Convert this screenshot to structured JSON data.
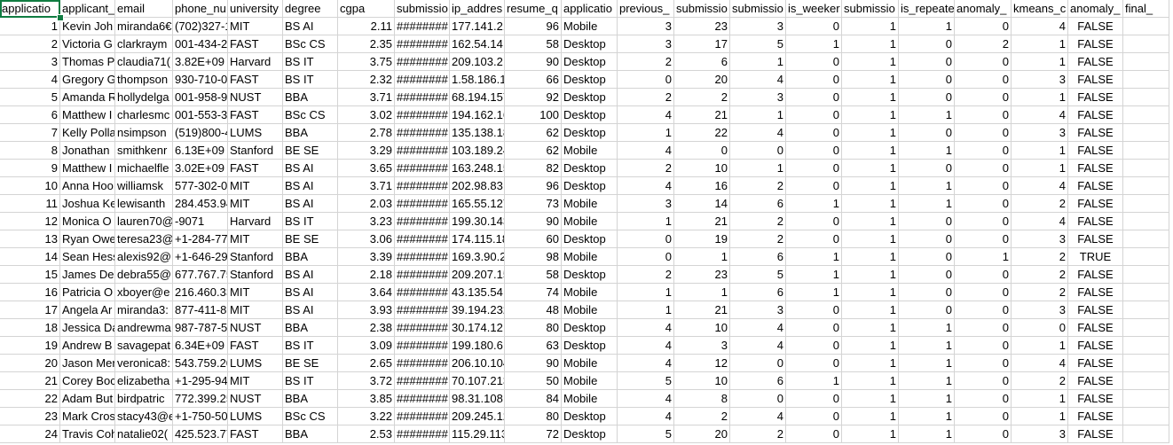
{
  "sheet": {
    "selected_cell": "applicatio",
    "columns": [
      {
        "header": "applicatio",
        "align": "num"
      },
      {
        "header": "applicant_",
        "align": "text"
      },
      {
        "header": "email",
        "align": "text"
      },
      {
        "header": "phone_nu",
        "align": "text"
      },
      {
        "header": "university",
        "align": "text"
      },
      {
        "header": "degree",
        "align": "text"
      },
      {
        "header": "cgpa",
        "align": "num"
      },
      {
        "header": "submissio",
        "align": "text"
      },
      {
        "header": "ip_addres",
        "align": "text"
      },
      {
        "header": "resume_q",
        "align": "num"
      },
      {
        "header": "applicatio",
        "align": "text"
      },
      {
        "header": "previous_",
        "align": "num"
      },
      {
        "header": "submissio",
        "align": "num"
      },
      {
        "header": "submissio",
        "align": "num"
      },
      {
        "header": "is_weeker",
        "align": "num"
      },
      {
        "header": "submissio",
        "align": "num"
      },
      {
        "header": "is_repeate",
        "align": "num"
      },
      {
        "header": "anomaly_",
        "align": "num"
      },
      {
        "header": "kmeans_c",
        "align": "num"
      },
      {
        "header": "anomaly_",
        "align": "bool"
      },
      {
        "header": "final_",
        "align": "text"
      }
    ],
    "rows": [
      [
        "1",
        "Kevin Joh",
        "miranda6€",
        "(702)327-1",
        "MIT",
        "BS AI",
        "2.11",
        "########",
        "177.141.21",
        "96",
        "Mobile",
        "3",
        "23",
        "3",
        "0",
        "1",
        "1",
        "0",
        "4",
        "FALSE",
        ""
      ],
      [
        "2",
        "Victoria G",
        "clarkraym",
        "001-434-2!",
        "FAST",
        "BSc CS",
        "2.35",
        "########",
        "162.54.14.",
        "58",
        "Desktop",
        "3",
        "17",
        "5",
        "1",
        "1",
        "0",
        "2",
        "1",
        "FALSE",
        ""
      ],
      [
        "3",
        "Thomas P",
        "claudia71(",
        "3.82E+09",
        "Harvard",
        "BS IT",
        "3.75",
        "########",
        "209.103.2.",
        "90",
        "Desktop",
        "2",
        "6",
        "1",
        "0",
        "1",
        "0",
        "0",
        "1",
        "FALSE",
        ""
      ],
      [
        "4",
        "Gregory G",
        "thompson",
        "930-710-0(",
        "FAST",
        "BS IT",
        "2.32",
        "########",
        "1.58.186.1",
        "66",
        "Desktop",
        "0",
        "20",
        "4",
        "0",
        "1",
        "0",
        "0",
        "3",
        "FALSE",
        ""
      ],
      [
        "5",
        "Amanda R",
        "hollydelga",
        "001-958-9:",
        "NUST",
        "BBA",
        "3.71",
        "########",
        "68.194.157",
        "92",
        "Desktop",
        "2",
        "2",
        "3",
        "0",
        "1",
        "0",
        "0",
        "1",
        "FALSE",
        ""
      ],
      [
        "6",
        "Matthew I",
        "charlesmc",
        "001-553-3-",
        "FAST",
        "BSc CS",
        "3.02",
        "########",
        "194.162.16",
        "100",
        "Desktop",
        "4",
        "21",
        "1",
        "0",
        "1",
        "1",
        "0",
        "4",
        "FALSE",
        ""
      ],
      [
        "7",
        "Kelly Polla",
        "nsimpson",
        "(519)800-4",
        "LUMS",
        "BBA",
        "2.78",
        "########",
        "135.138.18",
        "62",
        "Desktop",
        "1",
        "22",
        "4",
        "0",
        "1",
        "0",
        "0",
        "3",
        "FALSE",
        ""
      ],
      [
        "8",
        "Jonathan",
        "smithkenr",
        "6.13E+09",
        "Stanford",
        "BE SE",
        "3.29",
        "########",
        "103.189.24",
        "62",
        "Mobile",
        "4",
        "0",
        "0",
        "0",
        "1",
        "1",
        "0",
        "1",
        "FALSE",
        ""
      ],
      [
        "9",
        "Matthew I",
        "michaelfle",
        "3.02E+09",
        "FAST",
        "BS AI",
        "3.65",
        "########",
        "163.248.15",
        "82",
        "Desktop",
        "2",
        "10",
        "1",
        "0",
        "1",
        "0",
        "0",
        "1",
        "FALSE",
        ""
      ],
      [
        "10",
        "Anna Hoo",
        "williamsk",
        "577-302-0(",
        "MIT",
        "BS AI",
        "3.71",
        "########",
        "202.98.83.",
        "96",
        "Desktop",
        "4",
        "16",
        "2",
        "0",
        "1",
        "1",
        "0",
        "4",
        "FALSE",
        ""
      ],
      [
        "11",
        "Joshua Ke",
        "lewisanth",
        "284.453.94",
        "MIT",
        "BS AI",
        "2.03",
        "########",
        "165.55.127",
        "73",
        "Mobile",
        "3",
        "14",
        "6",
        "1",
        "1",
        "1",
        "0",
        "2",
        "FALSE",
        ""
      ],
      [
        "12",
        "Monica O",
        "lauren70@",
        "-9071",
        "Harvard",
        "BS IT",
        "3.23",
        "########",
        "199.30.143",
        "90",
        "Mobile",
        "1",
        "21",
        "2",
        "0",
        "1",
        "0",
        "0",
        "4",
        "FALSE",
        ""
      ],
      [
        "13",
        "Ryan Owe",
        "teresa23@",
        "+1-284-77",
        "MIT",
        "BE SE",
        "3.06",
        "########",
        "174.115.18",
        "60",
        "Desktop",
        "0",
        "19",
        "2",
        "0",
        "1",
        "0",
        "0",
        "3",
        "FALSE",
        ""
      ],
      [
        "14",
        "Sean Hess",
        "alexis92@",
        "+1-646-29",
        "Stanford",
        "BBA",
        "3.39",
        "########",
        "169.3.90.2",
        "98",
        "Mobile",
        "0",
        "1",
        "6",
        "1",
        "1",
        "0",
        "1",
        "2",
        "TRUE",
        ""
      ],
      [
        "15",
        "James Dea",
        "debra55@",
        "677.767.75",
        "Stanford",
        "BS AI",
        "2.18",
        "########",
        "209.207.15",
        "58",
        "Desktop",
        "2",
        "23",
        "5",
        "1",
        "1",
        "0",
        "0",
        "2",
        "FALSE",
        ""
      ],
      [
        "16",
        "Patricia O",
        "xboyer@e",
        "216.460.33",
        "MIT",
        "BS AI",
        "3.64",
        "########",
        "43.135.54.",
        "74",
        "Mobile",
        "1",
        "1",
        "6",
        "1",
        "1",
        "0",
        "0",
        "2",
        "FALSE",
        ""
      ],
      [
        "17",
        "Angela Ar",
        "miranda3:",
        "877-411-8:",
        "MIT",
        "BS AI",
        "3.93",
        "########",
        "39.194.232",
        "48",
        "Mobile",
        "1",
        "21",
        "3",
        "0",
        "1",
        "0",
        "0",
        "3",
        "FALSE",
        ""
      ],
      [
        "18",
        "Jessica Da",
        "andrewma",
        "987-787-5:",
        "NUST",
        "BBA",
        "2.38",
        "########",
        "30.174.12.",
        "80",
        "Desktop",
        "4",
        "10",
        "4",
        "0",
        "1",
        "1",
        "0",
        "0",
        "FALSE",
        ""
      ],
      [
        "19",
        "Andrew B",
        "savagepat",
        "6.34E+09",
        "FAST",
        "BS IT",
        "3.09",
        "########",
        "199.180.6.",
        "63",
        "Desktop",
        "4",
        "3",
        "4",
        "0",
        "1",
        "1",
        "0",
        "1",
        "FALSE",
        ""
      ],
      [
        "20",
        "Jason Mer",
        "veronica8:",
        "543.759.20",
        "LUMS",
        "BE SE",
        "2.65",
        "########",
        "206.10.104",
        "90",
        "Mobile",
        "4",
        "12",
        "0",
        "0",
        "1",
        "1",
        "0",
        "4",
        "FALSE",
        ""
      ],
      [
        "21",
        "Corey Boc",
        "elizabetha",
        "+1-295-94(",
        "MIT",
        "BS IT",
        "3.72",
        "########",
        "70.107.213",
        "50",
        "Mobile",
        "5",
        "10",
        "6",
        "1",
        "1",
        "1",
        "0",
        "2",
        "FALSE",
        ""
      ],
      [
        "22",
        "Adam But",
        "birdpatric",
        "772.399.25",
        "NUST",
        "BBA",
        "3.85",
        "########",
        "98.31.108.",
        "84",
        "Mobile",
        "4",
        "8",
        "0",
        "0",
        "1",
        "1",
        "0",
        "1",
        "FALSE",
        ""
      ],
      [
        "23",
        "Mark Cros",
        "stacy43@e",
        "+1-750-50(",
        "LUMS",
        "BSc CS",
        "3.22",
        "########",
        "209.245.12",
        "80",
        "Desktop",
        "4",
        "2",
        "4",
        "0",
        "1",
        "1",
        "0",
        "1",
        "FALSE",
        ""
      ],
      [
        "24",
        "Travis Coh",
        "natalie02(",
        "425.523.77",
        "FAST",
        "BBA",
        "2.53",
        "########",
        "115.29.113",
        "72",
        "Desktop",
        "5",
        "20",
        "2",
        "0",
        "1",
        "1",
        "0",
        "3",
        "FALSE",
        ""
      ]
    ]
  }
}
